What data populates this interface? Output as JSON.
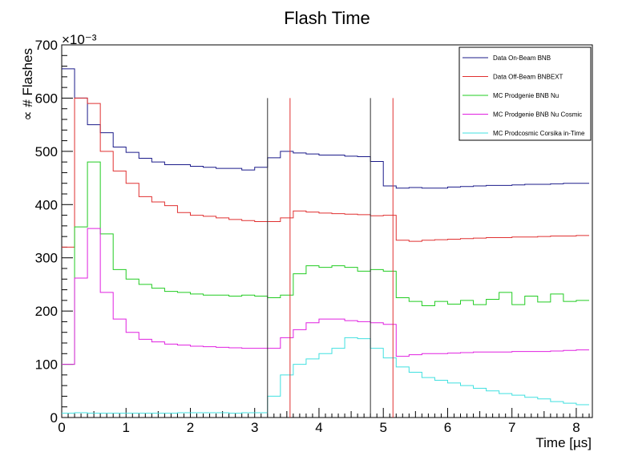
{
  "chart_data": {
    "type": "line",
    "title": "Flash Time",
    "xlabel": "Time [µs]",
    "ylabel": "∝ # Flashes",
    "y_multiplier": "×10⁻³",
    "xlim": [
      0,
      8.25
    ],
    "ylim": [
      0,
      700
    ],
    "x_ticks": [
      0,
      1,
      2,
      3,
      4,
      5,
      6,
      7,
      8
    ],
    "y_ticks": [
      0,
      100,
      200,
      300,
      400,
      500,
      600,
      700
    ],
    "legend_position": "top-right",
    "grid": false,
    "bin_edges": [
      0,
      0.2,
      0.4,
      0.6,
      0.8,
      1.0,
      1.2,
      1.4,
      1.6,
      1.8,
      2.0,
      2.2,
      2.4,
      2.6,
      2.8,
      3.0,
      3.2,
      3.4,
      3.6,
      3.8,
      4.0,
      4.2,
      4.4,
      4.6,
      4.8,
      5.0,
      5.2,
      5.4,
      5.6,
      5.8,
      6.0,
      6.2,
      6.4,
      6.6,
      6.8,
      7.0,
      7.2,
      7.4,
      7.6,
      7.8,
      8.0,
      8.2
    ],
    "series": [
      {
        "name": "Data On-Beam BNB",
        "color": "#1b1b8a",
        "values": [
          655,
          600,
          550,
          535,
          508,
          498,
          487,
          480,
          475,
          475,
          472,
          470,
          468,
          468,
          465,
          470,
          488,
          500,
          497,
          495,
          493,
          493,
          491,
          490,
          481,
          435,
          431,
          432,
          431,
          431,
          433,
          434,
          435,
          436,
          436,
          437,
          438,
          438,
          439,
          440,
          440
        ]
      },
      {
        "name": "Data Off-Beam BNBEXT",
        "color": "#e03030",
        "values": [
          320,
          600,
          590,
          500,
          463,
          440,
          415,
          405,
          398,
          385,
          380,
          378,
          375,
          372,
          370,
          368,
          368,
          375,
          388,
          386,
          384,
          383,
          382,
          381,
          379,
          380,
          333,
          331,
          333,
          334,
          335,
          336,
          337,
          338,
          338,
          339,
          339,
          340,
          341,
          341,
          342
        ]
      },
      {
        "name": "MC Prodgenie BNB Nu",
        "color": "#22cc22",
        "values": [
          100,
          358,
          480,
          345,
          278,
          260,
          250,
          243,
          237,
          235,
          232,
          230,
          230,
          228,
          230,
          228,
          225,
          230,
          270,
          285,
          282,
          285,
          282,
          275,
          278,
          275,
          225,
          218,
          210,
          218,
          213,
          220,
          212,
          222,
          235,
          212,
          228,
          217,
          232,
          218,
          220
        ]
      },
      {
        "name": "MC Prodgenie BNB Nu Cosmic",
        "color": "#e020e0",
        "values": [
          100,
          262,
          355,
          235,
          185,
          160,
          147,
          142,
          138,
          136,
          134,
          133,
          132,
          131,
          130,
          130,
          130,
          150,
          165,
          178,
          185,
          185,
          182,
          180,
          178,
          175,
          115,
          118,
          120,
          120,
          121,
          122,
          123,
          123,
          123,
          124,
          124,
          124,
          125,
          126,
          127
        ]
      },
      {
        "name": "MC Prodcosmic Corsika in-Time",
        "color": "#40e0e0",
        "values": [
          8,
          9,
          8,
          8,
          8,
          8,
          8,
          8,
          8,
          9,
          9,
          9,
          9,
          8,
          9,
          9,
          40,
          80,
          100,
          110,
          120,
          130,
          150,
          148,
          130,
          112,
          95,
          85,
          75,
          70,
          65,
          60,
          55,
          50,
          45,
          42,
          38,
          35,
          30,
          27,
          24
        ]
      }
    ],
    "vertical_lines": [
      {
        "x": 3.2,
        "color": "#333333"
      },
      {
        "x": 3.55,
        "color": "#e03030"
      },
      {
        "x": 4.8,
        "color": "#333333"
      },
      {
        "x": 5.15,
        "color": "#e03030"
      }
    ]
  }
}
